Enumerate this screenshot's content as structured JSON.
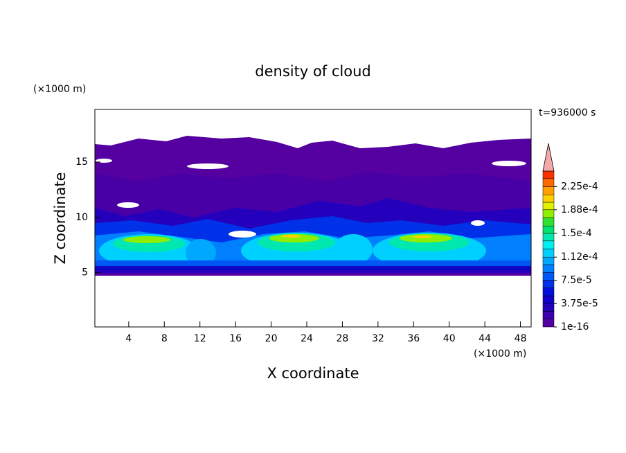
{
  "chart_data": {
    "type": "contour",
    "title": "density of cloud",
    "x_label": "X coordinate",
    "y_label": "Z coordinate",
    "x_unit": "(×1000 m)",
    "y_unit": "(×1000 m)",
    "time_label": "t=936000 s",
    "xlim": [
      0.2,
      49.2
    ],
    "xticks": [
      4,
      8,
      12,
      16,
      20,
      24,
      28,
      32,
      36,
      40,
      44,
      48
    ],
    "ylim": [
      0.1,
      19.75
    ],
    "yticks": [
      5,
      10,
      15
    ],
    "levels": [
      0,
      1.25e-05,
      2.5e-05,
      3.75e-05,
      5e-05,
      6.25e-05,
      7.5e-05,
      8.75e-05,
      0.0001,
      0.000112,
      0.000125,
      0.000138,
      0.00015,
      0.000162,
      0.000175,
      0.000188,
      0.0002,
      0.000212,
      0.000225,
      0.000238,
      0.00025
    ],
    "colors": [
      "#5500a0",
      "#3c00ac",
      "#2400bc",
      "#1000c8",
      "#0010d8",
      "#0030e8",
      "#0058f4",
      "#0080ff",
      "#00a8ff",
      "#00d0ff",
      "#00f0f0",
      "#00e8b0",
      "#00e070",
      "#30e030",
      "#90ee00",
      "#e0f000",
      "#ffd000",
      "#ffa000",
      "#ff6800",
      "#ff3000"
    ],
    "extend_color": "#f4a8a8",
    "colorbar_ticks": [
      {
        "value": 1e-16,
        "label": "1e-16"
      },
      {
        "value": 3.75e-05,
        "label": "3.75e-5"
      },
      {
        "value": 7.5e-05,
        "label": "7.5e-5"
      },
      {
        "value": 0.000112,
        "label": "1.12e-4"
      },
      {
        "value": 0.00015,
        "label": "1.5e-4"
      },
      {
        "value": 0.000188,
        "label": "1.88e-4"
      },
      {
        "value": 0.000225,
        "label": "2.25e-4"
      }
    ]
  }
}
